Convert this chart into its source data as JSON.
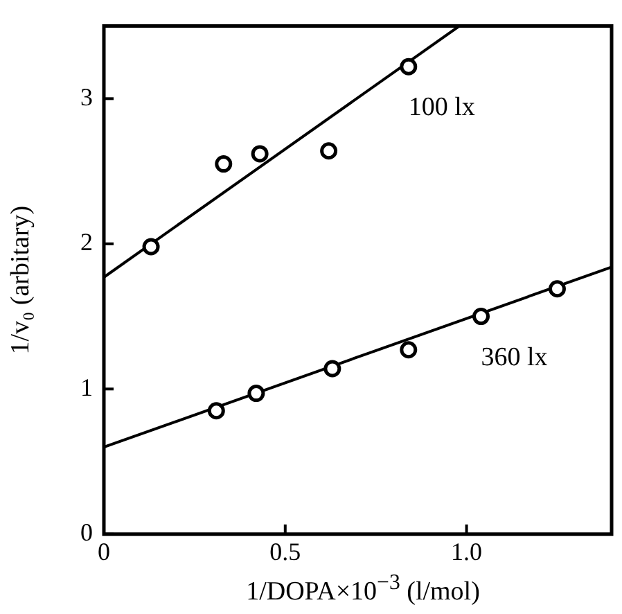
{
  "chart_data": {
    "type": "scatter",
    "xlabel": "1/DOPA×10$^{−3}$ (l/mol)",
    "ylabel": "1/v₀ (arbitary)",
    "xlim": [
      0,
      1.4
    ],
    "ylim": [
      0,
      3.5
    ],
    "xticks": [
      0,
      0.5,
      {
        "value": 1,
        "label": "1.0"
      }
    ],
    "yticks": [
      0,
      1,
      2,
      3
    ],
    "grid": false,
    "legend": false,
    "marker": "circle",
    "annotations": [
      "100 lx",
      "360 lx"
    ],
    "series": [
      {
        "color": "#000000",
        "x": [
          0.13,
          0.33,
          0.43,
          0.62,
          0.84
        ],
        "values": [
          1.98,
          2.55,
          2.62,
          2.64,
          3.22
        ]
      },
      {
        "type": "line",
        "marker": "none",
        "color": "#000000",
        "x": [
          0,
          0.98
        ],
        "values": [
          1.77,
          3.5
        ]
      },
      {
        "color": "#000000",
        "x": [
          0.31,
          0.42,
          0.63,
          0.84,
          1.04,
          1.25
        ],
        "values": [
          0.85,
          0.97,
          1.14,
          1.27,
          1.5,
          1.69
        ]
      },
      {
        "type": "line",
        "marker": "none",
        "color": "#000000",
        "x": [
          0,
          1.4
        ],
        "values": [
          0.6,
          1.84
        ]
      }
    ]
  }
}
